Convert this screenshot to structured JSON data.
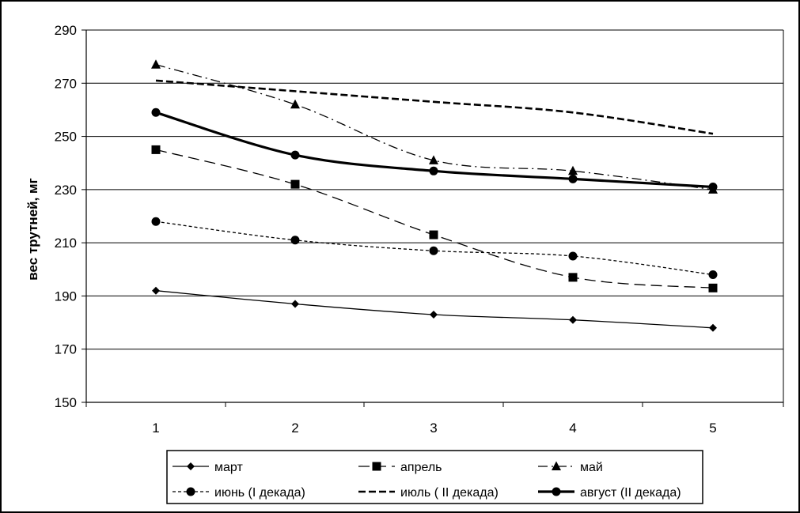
{
  "chart_data": {
    "type": "line",
    "x": [
      1,
      2,
      3,
      4,
      5
    ],
    "ylabel": "вес трутней, мг",
    "xlabel": "",
    "title": "",
    "ylim": [
      150,
      290
    ],
    "yticks": [
      150,
      170,
      190,
      210,
      230,
      250,
      270,
      290
    ],
    "xticks": [
      1,
      2,
      3,
      4,
      5
    ],
    "grid": "horizontal",
    "legend_position": "bottom",
    "series": [
      {
        "name": "март",
        "values": [
          192,
          187,
          183,
          181,
          178
        ],
        "marker": "diamond",
        "line": "solid-thin"
      },
      {
        "name": "апрель",
        "values": [
          245,
          232,
          213,
          197,
          193
        ],
        "marker": "square",
        "line": "long-dash"
      },
      {
        "name": "май",
        "values": [
          277,
          262,
          241,
          237,
          230
        ],
        "marker": "triangle",
        "line": "dash-dot"
      },
      {
        "name": "июнь (I декада)",
        "values": [
          218,
          211,
          207,
          205,
          198
        ],
        "marker": "circle",
        "line": "short-dash"
      },
      {
        "name": "июль ( II декада)",
        "values": [
          271,
          267,
          263,
          259,
          251
        ],
        "marker": "none",
        "line": "bold-dash"
      },
      {
        "name": "август (II декада)",
        "values": [
          259,
          243,
          237,
          234,
          231
        ],
        "marker": "circle",
        "line": "solid-bold"
      }
    ]
  }
}
